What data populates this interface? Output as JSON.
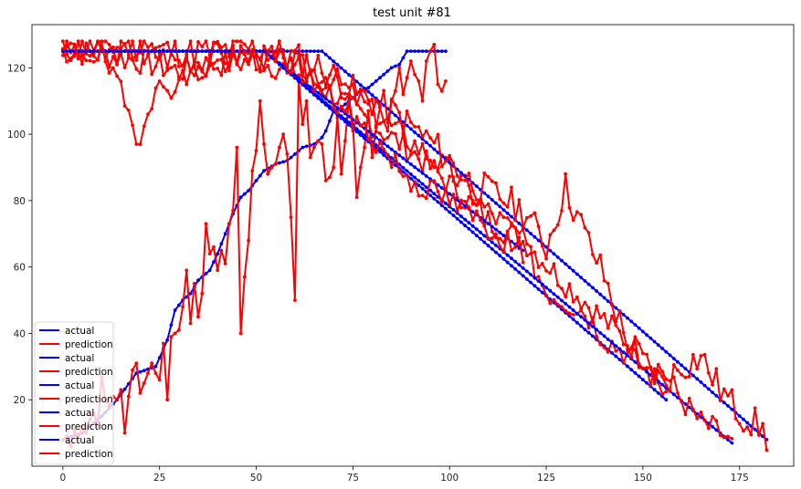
{
  "chart_data": {
    "type": "line",
    "title": "test unit #81",
    "xlabel": "",
    "ylabel": "",
    "xlim": [
      -8,
      189
    ],
    "ylim": [
      0,
      133
    ],
    "xticks": [
      0,
      25,
      50,
      75,
      100,
      125,
      150,
      175
    ],
    "yticks": [
      20,
      40,
      60,
      80,
      100,
      120
    ],
    "grid": false,
    "legend_position": "bottom-left",
    "series": [
      {
        "name": "actual",
        "color": "#0000ff",
        "kind": "piecewise",
        "n": 100,
        "plateau": 125,
        "knee": 0,
        "rise_pts": [
          [
            0,
            8
          ],
          [
            5,
            10
          ],
          [
            10,
            15
          ],
          [
            14,
            20
          ],
          [
            19,
            28
          ],
          [
            24,
            30
          ],
          [
            27,
            38
          ],
          [
            29,
            47
          ],
          [
            31,
            50
          ],
          [
            33,
            52
          ],
          [
            35,
            56
          ],
          [
            38,
            59
          ],
          [
            40,
            64
          ],
          [
            42,
            70
          ],
          [
            44,
            76
          ],
          [
            46,
            81
          ],
          [
            48,
            83
          ],
          [
            50,
            86
          ],
          [
            52,
            89
          ],
          [
            55,
            91
          ],
          [
            58,
            92
          ],
          [
            60,
            94
          ],
          [
            62,
            96
          ],
          [
            65,
            97
          ],
          [
            67,
            99
          ],
          [
            68,
            101
          ],
          [
            69,
            104
          ],
          [
            70,
            107
          ],
          [
            72,
            108
          ],
          [
            74,
            110
          ],
          [
            77,
            113
          ],
          [
            79,
            114
          ],
          [
            81,
            116
          ],
          [
            83,
            118
          ],
          [
            85,
            120
          ],
          [
            87,
            121
          ],
          [
            88,
            123
          ],
          [
            89,
            125
          ],
          [
            99,
            125
          ]
        ]
      },
      {
        "name": "prediction",
        "color": "#ff0000",
        "values_y": [
          8,
          9,
          6,
          11,
          8,
          12,
          10,
          14,
          16,
          12,
          27,
          20,
          18,
          21,
          20,
          23,
          10,
          21,
          29,
          31,
          22,
          25,
          28,
          31,
          28,
          26,
          37,
          20,
          39,
          40,
          41,
          48,
          59,
          43,
          55,
          45,
          52,
          73,
          64,
          66,
          59,
          65,
          61,
          73,
          77,
          96,
          40,
          57,
          68,
          89,
          95,
          110,
          97,
          88,
          90,
          91,
          96,
          100,
          94,
          75,
          50,
          116,
          103,
          110,
          93,
          96,
          98,
          97,
          86,
          87,
          90,
          105,
          88,
          98,
          111,
          103,
          81,
          90,
          96,
          107,
          93,
          102,
          108,
          104,
          101,
          110,
          113,
          120,
          112,
          117,
          122,
          118,
          116,
          110,
          122,
          125,
          127,
          115,
          113,
          116
        ]
      },
      {
        "name": "actual",
        "color": "#0000ff",
        "kind": "linear",
        "n": 157,
        "plateau": 125,
        "knee": 52,
        "end": 20
      },
      {
        "name": "prediction",
        "color": "#ff0000",
        "kind": "noisy",
        "n": 157,
        "start": 125,
        "end": 20,
        "seed": 3,
        "amp": 4,
        "pattern": [
          [
            0,
            126
          ],
          [
            10,
            124
          ],
          [
            20,
            126
          ],
          [
            30,
            122
          ],
          [
            40,
            124
          ],
          [
            52,
            123
          ],
          [
            60,
            121
          ],
          [
            70,
            117
          ],
          [
            80,
            107
          ],
          [
            90,
            98
          ],
          [
            100,
            89
          ],
          [
            110,
            77
          ],
          [
            118,
            70
          ],
          [
            125,
            53
          ],
          [
            130,
            50
          ],
          [
            135,
            47
          ],
          [
            140,
            39
          ],
          [
            145,
            35
          ],
          [
            150,
            30
          ],
          [
            157,
            22
          ]
        ]
      },
      {
        "name": "actual",
        "color": "#0000ff",
        "kind": "linear",
        "n": 174,
        "plateau": 125,
        "knee": 52,
        "end": 7
      },
      {
        "name": "prediction",
        "color": "#ff0000",
        "kind": "noisy",
        "n": 174,
        "start": 125,
        "end": 7,
        "seed": 7,
        "amp": 4,
        "pattern": [
          [
            0,
            125
          ],
          [
            10,
            124
          ],
          [
            20,
            122
          ],
          [
            30,
            119
          ],
          [
            40,
            121
          ],
          [
            50,
            122
          ],
          [
            60,
            119
          ],
          [
            70,
            112
          ],
          [
            80,
            103
          ],
          [
            90,
            95
          ],
          [
            100,
            85
          ],
          [
            110,
            74
          ],
          [
            120,
            67
          ],
          [
            130,
            55
          ],
          [
            140,
            44
          ],
          [
            150,
            33
          ],
          [
            155,
            29
          ],
          [
            160,
            20
          ],
          [
            165,
            13
          ],
          [
            170,
            10
          ],
          [
            173,
            6
          ]
        ]
      },
      {
        "name": "actual",
        "color": "#0000ff",
        "kind": "linear",
        "n": 183,
        "plateau": 125,
        "knee": 67,
        "end": 8
      },
      {
        "name": "prediction",
        "color": "#ff0000",
        "kind": "noisy",
        "n": 183,
        "start": 125,
        "end": 6,
        "seed": 11,
        "amp": 5,
        "pattern": [
          [
            0,
            126
          ],
          [
            10,
            127
          ],
          [
            20,
            126
          ],
          [
            30,
            125
          ],
          [
            40,
            125
          ],
          [
            50,
            126
          ],
          [
            60,
            123
          ],
          [
            67,
            120
          ],
          [
            75,
            113
          ],
          [
            85,
            107
          ],
          [
            95,
            98
          ],
          [
            105,
            86
          ],
          [
            115,
            80
          ],
          [
            120,
            76
          ],
          [
            125,
            66
          ],
          [
            130,
            84
          ],
          [
            135,
            70
          ],
          [
            140,
            57
          ],
          [
            145,
            40
          ],
          [
            150,
            32
          ],
          [
            155,
            25
          ],
          [
            160,
            30
          ],
          [
            165,
            33
          ],
          [
            170,
            23
          ],
          [
            175,
            16
          ],
          [
            180,
            12
          ],
          [
            183,
            7
          ]
        ]
      },
      {
        "name": "actual",
        "color": "#0000ff",
        "kind": "linear",
        "n": 120,
        "plateau": 125,
        "knee": 52,
        "end": 65
      },
      {
        "name": "prediction",
        "color": "#ff0000",
        "kind": "noisy",
        "n": 120,
        "start": 126,
        "end": 65,
        "seed": 19,
        "amp": 4,
        "pattern": [
          [
            0,
            125
          ],
          [
            10,
            124
          ],
          [
            15,
            112
          ],
          [
            18,
            103
          ],
          [
            20,
            99
          ],
          [
            22,
            110
          ],
          [
            25,
            113
          ],
          [
            30,
            116
          ],
          [
            40,
            121
          ],
          [
            50,
            124
          ],
          [
            60,
            121
          ],
          [
            70,
            110
          ],
          [
            80,
            99
          ],
          [
            90,
            86
          ],
          [
            100,
            80
          ],
          [
            110,
            72
          ],
          [
            118,
            65
          ]
        ]
      }
    ]
  },
  "legend": [
    {
      "label": "actual",
      "color": "#0000ff"
    },
    {
      "label": "prediction",
      "color": "#ff0000"
    },
    {
      "label": "actual",
      "color": "#0000ff"
    },
    {
      "label": "prediction",
      "color": "#ff0000"
    },
    {
      "label": "actual",
      "color": "#0000ff"
    },
    {
      "label": "prediction",
      "color": "#ff0000"
    },
    {
      "label": "actual",
      "color": "#0000ff"
    },
    {
      "label": "prediction",
      "color": "#ff0000"
    },
    {
      "label": "actual",
      "color": "#0000ff"
    },
    {
      "label": "prediction",
      "color": "#ff0000"
    }
  ]
}
